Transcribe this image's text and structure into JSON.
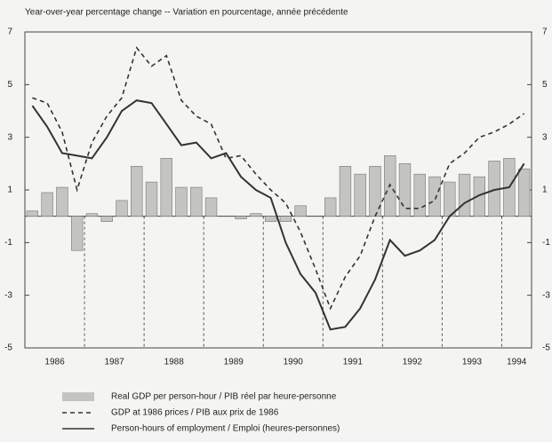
{
  "chart_data": {
    "type": "bar-line",
    "title": "Year-over-year percentage change -- Variation en pourcentage, année précédente",
    "years": [
      "1986",
      "1987",
      "1988",
      "1989",
      "1990",
      "1991",
      "1992",
      "1993",
      "1994"
    ],
    "ylim": [
      -5,
      7
    ],
    "yticks": [
      7,
      5,
      3,
      1,
      -1,
      -3,
      -5
    ],
    "series": [
      {
        "name": "Real GDP per person-hour / PIB réel par heure-personne",
        "kind": "bar",
        "color": "#c4c4c0",
        "values": [
          0.2,
          0.9,
          1.1,
          -1.3,
          0.1,
          -0.2,
          0.6,
          1.9,
          1.3,
          2.2,
          1.1,
          1.1,
          0.7,
          0.0,
          -0.1,
          0.1,
          -0.2,
          -0.2,
          0.4,
          0.0,
          0.7,
          1.9,
          1.6,
          1.9,
          2.3,
          2.0,
          1.6,
          1.5,
          1.3,
          1.6,
          1.5,
          2.1,
          2.2,
          1.8
        ]
      },
      {
        "name": "GDP at 1986 prices / PIB aux prix de 1986",
        "kind": "dashed",
        "color": "#333333",
        "values": [
          4.5,
          4.3,
          3.2,
          1.0,
          2.8,
          3.8,
          4.5,
          6.4,
          5.7,
          6.1,
          4.4,
          3.8,
          3.5,
          2.2,
          2.3,
          1.6,
          1.0,
          0.5,
          -0.6,
          -2.0,
          -3.5,
          -2.3,
          -1.5,
          0.0,
          1.2,
          0.3,
          0.3,
          0.6,
          2.0,
          2.4,
          3.0,
          3.2,
          3.5,
          3.9
        ]
      },
      {
        "name": "Person-hours of employment / Emploi (heures-personnes)",
        "kind": "solid",
        "color": "#333333",
        "values": [
          4.2,
          3.4,
          2.4,
          2.3,
          2.2,
          3.0,
          4.0,
          4.4,
          4.3,
          3.5,
          2.7,
          2.8,
          2.2,
          2.4,
          1.5,
          1.0,
          0.7,
          -1.0,
          -2.2,
          -2.9,
          -4.3,
          -4.2,
          -3.5,
          -2.4,
          -0.9,
          -1.5,
          -1.3,
          -0.9,
          0.0,
          0.5,
          0.8,
          1.0,
          1.1,
          2.0
        ]
      }
    ]
  }
}
